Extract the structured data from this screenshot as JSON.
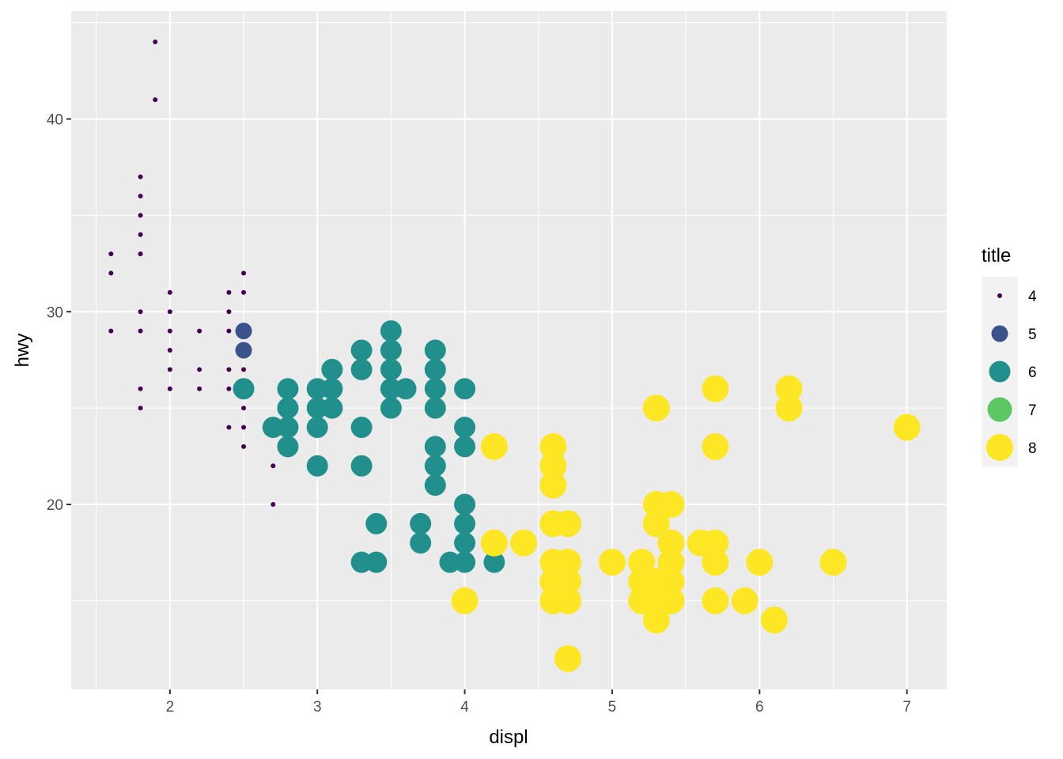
{
  "chart_data": {
    "type": "scatter",
    "title": "",
    "xlabel": "displ",
    "ylabel": "hwy",
    "xlim": [
      1.33,
      7.27
    ],
    "ylim": [
      10.4,
      45.6
    ],
    "x_ticks": [
      2,
      3,
      4,
      5,
      6,
      7
    ],
    "x_minor_ticks": [
      1.5,
      2.5,
      3.5,
      4.5,
      5.5,
      6.5
    ],
    "y_ticks": [
      20,
      30,
      40
    ],
    "y_minor_ticks": [
      15,
      25,
      35,
      45
    ],
    "x_tick_labels": [
      "2",
      "3",
      "4",
      "5",
      "6",
      "7"
    ],
    "y_tick_labels": [
      "20",
      "30",
      "40"
    ],
    "grid": true,
    "legend": {
      "title": "title",
      "position": "right",
      "entries": [
        {
          "label": "4",
          "value": 4,
          "color": "#440154"
        },
        {
          "label": "5",
          "value": 5,
          "color": "#3B528B"
        },
        {
          "label": "6",
          "value": 6,
          "color": "#21908C"
        },
        {
          "label": "7",
          "value": 7,
          "color": "#5DC863"
        },
        {
          "label": "8",
          "value": 8,
          "color": "#FDE725"
        }
      ]
    },
    "series": [
      {
        "name": "4",
        "color": "#440154",
        "points": [
          [
            1.6,
            33
          ],
          [
            1.6,
            32
          ],
          [
            1.6,
            29
          ],
          [
            1.8,
            37
          ],
          [
            1.8,
            36
          ],
          [
            1.8,
            35
          ],
          [
            1.8,
            34
          ],
          [
            1.8,
            33
          ],
          [
            1.8,
            30
          ],
          [
            1.8,
            29
          ],
          [
            1.8,
            26
          ],
          [
            1.8,
            25
          ],
          [
            1.9,
            44
          ],
          [
            1.9,
            41
          ],
          [
            2.0,
            31
          ],
          [
            2.0,
            30
          ],
          [
            2.0,
            29
          ],
          [
            2.0,
            28
          ],
          [
            2.0,
            27
          ],
          [
            2.0,
            26
          ],
          [
            2.2,
            29
          ],
          [
            2.2,
            27
          ],
          [
            2.2,
            26
          ],
          [
            2.4,
            31
          ],
          [
            2.4,
            30
          ],
          [
            2.4,
            29
          ],
          [
            2.4,
            27
          ],
          [
            2.4,
            26
          ],
          [
            2.4,
            24
          ],
          [
            2.5,
            32
          ],
          [
            2.5,
            31
          ],
          [
            2.5,
            29
          ],
          [
            2.5,
            27
          ],
          [
            2.5,
            26
          ],
          [
            2.5,
            25
          ],
          [
            2.5,
            24
          ],
          [
            2.5,
            23
          ],
          [
            2.7,
            22
          ],
          [
            2.7,
            20
          ]
        ]
      },
      {
        "name": "5",
        "color": "#3B528B",
        "points": [
          [
            2.5,
            29
          ],
          [
            2.5,
            28
          ]
        ]
      },
      {
        "name": "6",
        "color": "#21908C",
        "points": [
          [
            2.5,
            26
          ],
          [
            2.7,
            24
          ],
          [
            2.8,
            26
          ],
          [
            2.8,
            25
          ],
          [
            2.8,
            24
          ],
          [
            2.8,
            23
          ],
          [
            3.0,
            26
          ],
          [
            3.0,
            25
          ],
          [
            3.0,
            24
          ],
          [
            3.0,
            22
          ],
          [
            3.1,
            27
          ],
          [
            3.1,
            26
          ],
          [
            3.1,
            25
          ],
          [
            3.3,
            28
          ],
          [
            3.3,
            27
          ],
          [
            3.3,
            24
          ],
          [
            3.3,
            22
          ],
          [
            3.3,
            17
          ],
          [
            3.4,
            19
          ],
          [
            3.4,
            17
          ],
          [
            3.5,
            29
          ],
          [
            3.5,
            28
          ],
          [
            3.5,
            27
          ],
          [
            3.5,
            26
          ],
          [
            3.5,
            25
          ],
          [
            3.6,
            26
          ],
          [
            3.7,
            19
          ],
          [
            3.7,
            18
          ],
          [
            3.8,
            28
          ],
          [
            3.8,
            27
          ],
          [
            3.8,
            26
          ],
          [
            3.8,
            25
          ],
          [
            3.8,
            23
          ],
          [
            3.8,
            22
          ],
          [
            3.8,
            21
          ],
          [
            3.9,
            17
          ],
          [
            4.0,
            26
          ],
          [
            4.0,
            24
          ],
          [
            4.0,
            23
          ],
          [
            4.0,
            20
          ],
          [
            4.0,
            19
          ],
          [
            4.0,
            18
          ],
          [
            4.0,
            17
          ],
          [
            4.2,
            17
          ]
        ]
      },
      {
        "name": "7",
        "color": "#5DC863",
        "points": []
      },
      {
        "name": "8",
        "color": "#FDE725",
        "points": [
          [
            4.0,
            15
          ],
          [
            4.2,
            23
          ],
          [
            4.2,
            18
          ],
          [
            4.4,
            18
          ],
          [
            4.6,
            23
          ],
          [
            4.6,
            22
          ],
          [
            4.6,
            21
          ],
          [
            4.6,
            19
          ],
          [
            4.6,
            17
          ],
          [
            4.6,
            16
          ],
          [
            4.6,
            15
          ],
          [
            4.7,
            19
          ],
          [
            4.7,
            17
          ],
          [
            4.7,
            16
          ],
          [
            4.7,
            15
          ],
          [
            4.7,
            12
          ],
          [
            5.0,
            17
          ],
          [
            5.2,
            17
          ],
          [
            5.2,
            16
          ],
          [
            5.2,
            15
          ],
          [
            5.3,
            25
          ],
          [
            5.3,
            20
          ],
          [
            5.3,
            19
          ],
          [
            5.3,
            16
          ],
          [
            5.3,
            15
          ],
          [
            5.3,
            14
          ],
          [
            5.4,
            20
          ],
          [
            5.4,
            18
          ],
          [
            5.4,
            17
          ],
          [
            5.4,
            16
          ],
          [
            5.4,
            15
          ],
          [
            5.6,
            18
          ],
          [
            5.7,
            26
          ],
          [
            5.7,
            23
          ],
          [
            5.7,
            18
          ],
          [
            5.7,
            17
          ],
          [
            5.7,
            15
          ],
          [
            5.9,
            15
          ],
          [
            6.0,
            17
          ],
          [
            6.1,
            14
          ],
          [
            6.2,
            26
          ],
          [
            6.2,
            25
          ],
          [
            6.5,
            17
          ],
          [
            7.0,
            24
          ]
        ]
      }
    ]
  }
}
